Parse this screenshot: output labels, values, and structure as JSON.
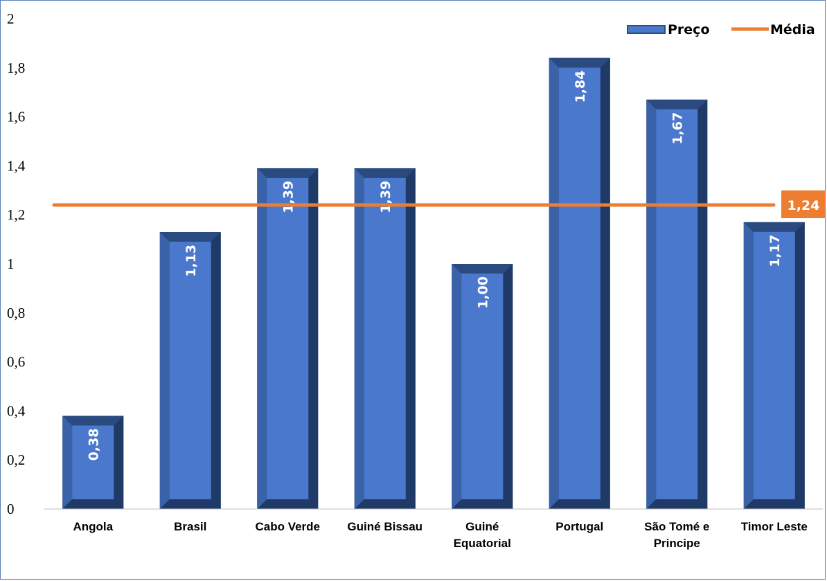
{
  "chart_data": {
    "type": "bar",
    "categories": [
      [
        "Angola"
      ],
      [
        "Brasil"
      ],
      [
        "Cabo Verde"
      ],
      [
        "Guiné Bissau"
      ],
      [
        "Guiné",
        "Equatorial"
      ],
      [
        "Portugal"
      ],
      [
        "São Tomé e",
        "Principe"
      ],
      [
        "Timor Leste"
      ]
    ],
    "series": [
      {
        "name": "Preço",
        "values": [
          0.38,
          1.13,
          1.39,
          1.39,
          1.0,
          1.84,
          1.67,
          1.17
        ],
        "labels": [
          "0,38",
          "1,13",
          "1,39",
          "1,39",
          "1,00",
          "1,84",
          "1,67",
          "1,17"
        ],
        "color": "#4472c4"
      }
    ],
    "average": {
      "name": "Média",
      "value": 1.24,
      "label": "1,24",
      "color": "#ed7d31"
    },
    "ylim": [
      0,
      2
    ],
    "yticks": [
      0,
      0.2,
      0.4,
      0.6,
      0.8,
      1,
      1.2,
      1.4,
      1.6,
      1.8,
      2
    ],
    "ytick_labels": [
      "0",
      "0,2",
      "0,4",
      "0,6",
      "0,8",
      "1",
      "1,2",
      "1,4",
      "1,6",
      "1,8",
      "2"
    ],
    "grid": false,
    "legend_position": "top-right",
    "colors": {
      "bar_face": "#4a78cc",
      "bar_dark": "#2c4d80",
      "bar_side": "#3a62a8",
      "bar_bottom": "#1f3a66",
      "axis": "#bfbfbf",
      "frame": "#5b7fb8"
    }
  }
}
